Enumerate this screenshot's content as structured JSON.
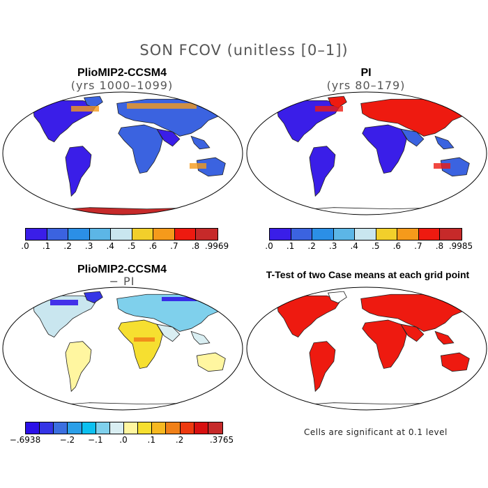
{
  "title": "SON FCOV (unitless [0–1])",
  "panels": [
    {
      "title": "PlioMIP2-CCSM4",
      "subtitle": "(yrs 1000–1099)",
      "map": "warm"
    },
    {
      "title": "PI",
      "subtitle": "(yrs 80–179)",
      "map": "warm2"
    },
    {
      "title": "PlioMIP2-CCSM4",
      "subtitle": "− PI",
      "map": "diff"
    },
    {
      "title": "T-Test of two Case means at each grid point",
      "subtitle": "",
      "map": "ttest"
    }
  ],
  "colorbars": [
    {
      "colors": [
        "#3a1ee8",
        "#3b63e0",
        "#2b8fe6",
        "#5cb6e6",
        "#c9e6ef",
        "#f2cf2b",
        "#f59a1b",
        "#ee1a10",
        "#c62a2a"
      ],
      "ticks": [
        ".0",
        ".1",
        ".2",
        ".3",
        ".4",
        ".5",
        ".6",
        ".7",
        ".8",
        ".9969"
      ]
    },
    {
      "colors": [
        "#3a1ee8",
        "#3b63e0",
        "#2b8fe6",
        "#5cb6e6",
        "#c9e6ef",
        "#f2cf2b",
        "#f59a1b",
        "#ee1a10",
        "#c62a2a"
      ],
      "ticks": [
        ".0",
        ".1",
        ".2",
        ".3",
        ".4",
        ".5",
        ".6",
        ".7",
        ".8",
        ".9985"
      ]
    },
    {
      "colors": [
        "#2b10e8",
        "#3535e6",
        "#3b6fe0",
        "#2b9fe8",
        "#0cc0f0",
        "#7fd0ec",
        "#d9eef2",
        "#fff6a0",
        "#f6df30",
        "#f6b820",
        "#f08018",
        "#ee3a10",
        "#d81010",
        "#c62a2a"
      ],
      "ticks": [
        "−.6938",
        "−.2",
        "−.1",
        ".0",
        ".1",
        ".2",
        ".3765"
      ]
    }
  ],
  "footnote": "Cells are significant at 0.1 level"
}
